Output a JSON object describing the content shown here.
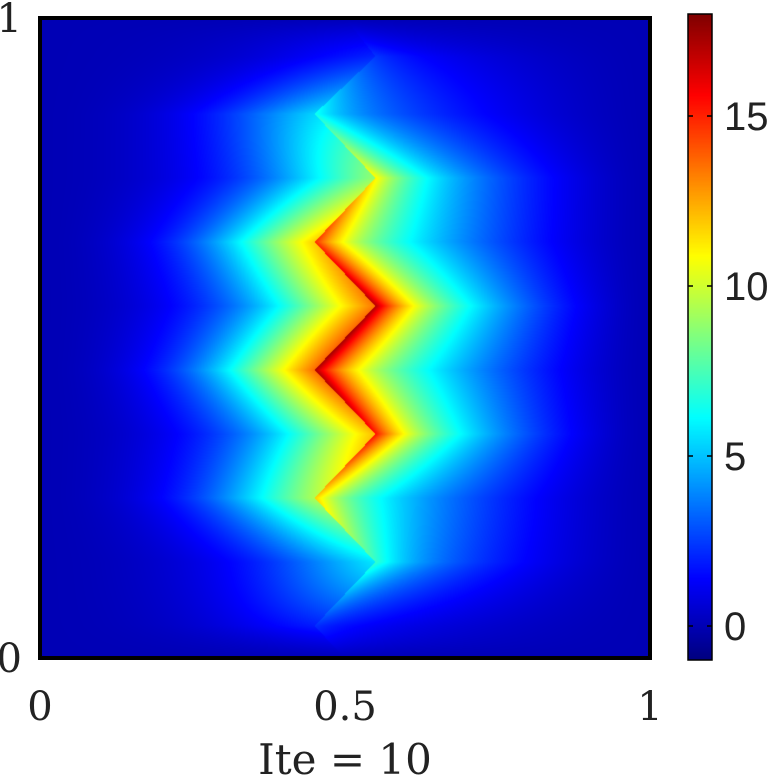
{
  "chart_data": {
    "type": "heatmap",
    "title": "",
    "xlabel": "Ite = 10",
    "ylabel": "",
    "xlim": [
      0,
      1
    ],
    "ylim": [
      0,
      1
    ],
    "x_ticks": [
      {
        "value": 0,
        "label": "0"
      },
      {
        "value": 0.5,
        "label": "0.5"
      },
      {
        "value": 1,
        "label": "1"
      }
    ],
    "y_ticks": [
      {
        "value": 0,
        "label": "0"
      },
      {
        "value": 1,
        "label": "1"
      }
    ],
    "colorbar": {
      "colormap": "jet",
      "range": [
        -1,
        18
      ],
      "ticks": [
        {
          "value": 0,
          "label": "0"
        },
        {
          "value": 5,
          "label": "5"
        },
        {
          "value": 10,
          "label": "10"
        },
        {
          "value": 15,
          "label": "15"
        }
      ]
    },
    "field": {
      "description_of_shape": "interface near x=0.5, zigzag, peak at y~0.45",
      "zigzag_vertices": [
        [
          0.5,
          1.0
        ],
        [
          0.55,
          0.94
        ],
        [
          0.45,
          0.85
        ],
        [
          0.55,
          0.75
        ],
        [
          0.45,
          0.65
        ],
        [
          0.55,
          0.55
        ],
        [
          0.45,
          0.45
        ],
        [
          0.55,
          0.35
        ],
        [
          0.45,
          0.25
        ],
        [
          0.55,
          0.15
        ],
        [
          0.45,
          0.05
        ],
        [
          0.5,
          0.0
        ]
      ],
      "peak_value": 17.5,
      "peak_location": [
        0.45,
        0.45
      ],
      "background_value": 0
    }
  }
}
